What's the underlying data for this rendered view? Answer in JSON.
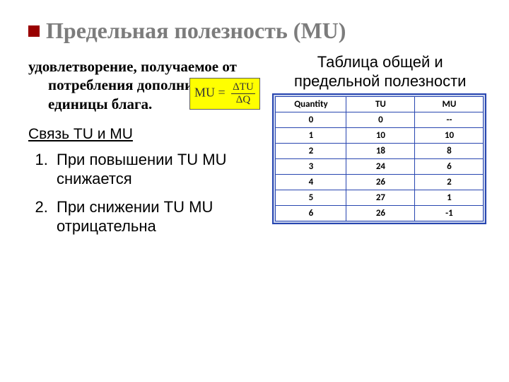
{
  "title": "Предельная полезность (MU)",
  "definition": "удовлетворение, получаемое от потребления дополнительной единицы блага.",
  "formula": {
    "lhs": "MU =",
    "numerator": "ΔTU",
    "denominator": "ΔQ",
    "background_color": "#ffff00",
    "border_color": "#5f5f5f",
    "text_color": "#333333"
  },
  "subhead": "Связь TU и MU",
  "points": [
    "При повышении TU MU снижается",
    "При снижении TU MU отрицательна"
  ],
  "table_title": "Таблица общей и предельной полезности",
  "table": {
    "type": "table",
    "columns": [
      "Quantity",
      "TU",
      "MU"
    ],
    "rows": [
      [
        "0",
        "0",
        "--"
      ],
      [
        "1",
        "10",
        "10"
      ],
      [
        "2",
        "18",
        "8"
      ],
      [
        "3",
        "24",
        "6"
      ],
      [
        "4",
        "26",
        "2"
      ],
      [
        "5",
        "27",
        "1"
      ],
      [
        "6",
        "26",
        "-1"
      ]
    ],
    "border_color": "#2846b0",
    "outer_background": "#c9d3ed",
    "cell_background": "#ffffff",
    "header_fontweight": "bold",
    "cell_fontweight": "bold",
    "fontsize": 13
  },
  "colors": {
    "title_color": "#7c7c7c",
    "accent_square": "#990000",
    "page_background": "#ffffff"
  }
}
